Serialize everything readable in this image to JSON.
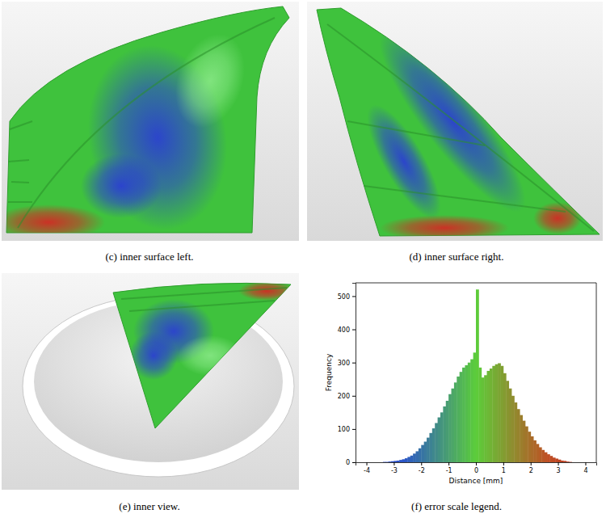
{
  "figure": {
    "captions": [
      "(c) inner surface left.",
      "(d) inner surface right.",
      "(e) inner view.",
      "(f) error scale legend."
    ]
  },
  "chart_data": {
    "type": "histogram",
    "x_label": "Distance [mm]",
    "y_label": "Frequency",
    "bins": [
      -3.5,
      -3.4,
      -3.3,
      -3.2,
      -3.1,
      -3.0,
      -2.9,
      -2.8,
      -2.7,
      -2.6,
      -2.5,
      -2.4,
      -2.3,
      -2.2,
      -2.1,
      -2.0,
      -1.9,
      -1.8,
      -1.7,
      -1.6,
      -1.5,
      -1.4,
      -1.3,
      -1.2,
      -1.1,
      -1.0,
      -0.9,
      -0.8,
      -0.7,
      -0.6,
      -0.5,
      -0.4,
      -0.3,
      -0.2,
      -0.1,
      0.0,
      0.1,
      0.2,
      0.3,
      0.4,
      0.5,
      0.6,
      0.7,
      0.8,
      0.9,
      1.0,
      1.1,
      1.2,
      1.3,
      1.4,
      1.5,
      1.6,
      1.7,
      1.8,
      1.9,
      2.0,
      2.1,
      2.2,
      2.3,
      2.4,
      2.5,
      2.6,
      2.7,
      2.8,
      2.9,
      3.0,
      3.1,
      3.2,
      3.3,
      3.4,
      3.5
    ],
    "counts": [
      0,
      1,
      1,
      2,
      3,
      4,
      5,
      7,
      9,
      12,
      16,
      20,
      26,
      33,
      42,
      52,
      62,
      74,
      88,
      102,
      118,
      135,
      150,
      168,
      185,
      205,
      222,
      240,
      258,
      272,
      285,
      292,
      300,
      310,
      330,
      520,
      285,
      255,
      262,
      275,
      282,
      290,
      295,
      298,
      290,
      268,
      245,
      222,
      200,
      180,
      160,
      142,
      125,
      108,
      92,
      78,
      66,
      55,
      45,
      37,
      30,
      24,
      19,
      14,
      11,
      8,
      5,
      4,
      2,
      1
    ],
    "xlim": [
      -4.4,
      4.4
    ],
    "xticks": [
      -4,
      -3,
      -2,
      -1,
      0,
      1,
      2,
      3,
      4
    ],
    "ylim": [
      0,
      540
    ],
    "yticks": [
      0,
      100,
      200,
      300,
      400,
      500
    ]
  }
}
